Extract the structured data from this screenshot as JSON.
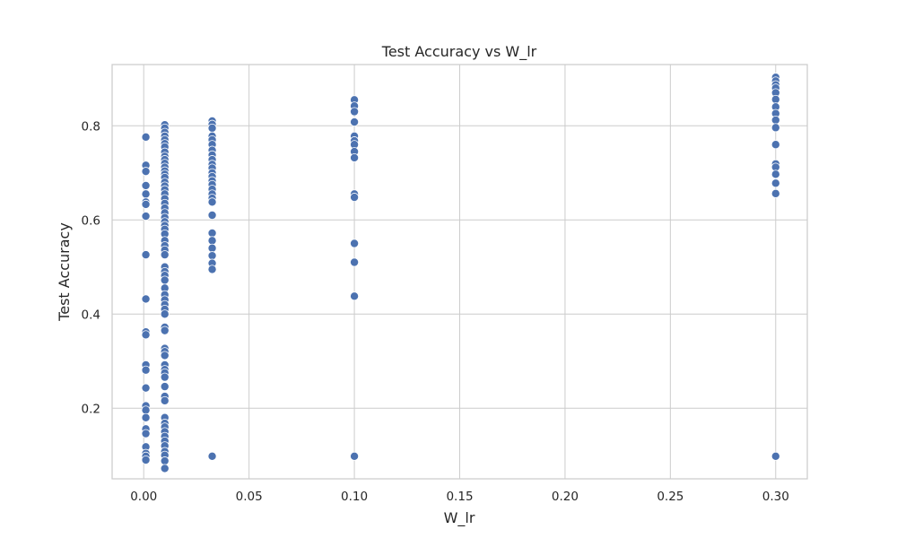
{
  "chart_data": {
    "type": "scatter",
    "title": "Test Accuracy vs W_lr",
    "xlabel": "W_lr",
    "ylabel": "Test Accuracy",
    "xlim": [
      -0.015,
      0.315
    ],
    "ylim": [
      0.05,
      0.93
    ],
    "xticks": [
      0.0,
      0.05,
      0.1,
      0.15,
      0.2,
      0.25,
      0.3
    ],
    "xtick_labels": [
      "0.00",
      "0.05",
      "0.10",
      "0.15",
      "0.20",
      "0.25",
      "0.30"
    ],
    "yticks": [
      0.2,
      0.4,
      0.6,
      0.8
    ],
    "ytick_labels": [
      "0.2",
      "0.4",
      "0.6",
      "0.8"
    ],
    "grid": true,
    "point_color": "#4c72b0",
    "series": [
      {
        "x": 0.001,
        "y": [
          0.776,
          0.716,
          0.703,
          0.673,
          0.655,
          0.638,
          0.633,
          0.608,
          0.526,
          0.432,
          0.362,
          0.356,
          0.292,
          0.281,
          0.243,
          0.205,
          0.196,
          0.18,
          0.156,
          0.146,
          0.118,
          0.104,
          0.098,
          0.09
        ]
      },
      {
        "x": 0.01,
        "y": [
          0.802,
          0.795,
          0.786,
          0.778,
          0.77,
          0.762,
          0.755,
          0.744,
          0.735,
          0.728,
          0.72,
          0.712,
          0.704,
          0.697,
          0.69,
          0.68,
          0.672,
          0.664,
          0.655,
          0.645,
          0.635,
          0.625,
          0.615,
          0.605,
          0.596,
          0.588,
          0.58,
          0.57,
          0.556,
          0.545,
          0.536,
          0.526,
          0.5,
          0.49,
          0.482,
          0.472,
          0.455,
          0.441,
          0.43,
          0.42,
          0.41,
          0.4,
          0.372,
          0.365,
          0.327,
          0.32,
          0.312,
          0.292,
          0.282,
          0.275,
          0.266,
          0.246,
          0.225,
          0.216,
          0.18,
          0.168,
          0.16,
          0.15,
          0.14,
          0.13,
          0.12,
          0.108,
          0.1,
          0.088,
          0.072
        ]
      },
      {
        "x": 0.0325,
        "y": [
          0.81,
          0.803,
          0.795,
          0.778,
          0.77,
          0.76,
          0.748,
          0.738,
          0.728,
          0.718,
          0.71,
          0.7,
          0.692,
          0.683,
          0.675,
          0.665,
          0.655,
          0.646,
          0.638,
          0.61,
          0.572,
          0.556,
          0.54,
          0.524,
          0.508,
          0.495,
          0.098
        ]
      },
      {
        "x": 0.1,
        "y": [
          0.855,
          0.842,
          0.83,
          0.808,
          0.778,
          0.768,
          0.76,
          0.745,
          0.732,
          0.655,
          0.648,
          0.55,
          0.51,
          0.438,
          0.098
        ]
      },
      {
        "x": 0.3,
        "y": [
          0.903,
          0.895,
          0.887,
          0.88,
          0.87,
          0.856,
          0.84,
          0.826,
          0.812,
          0.796,
          0.76,
          0.719,
          0.712,
          0.697,
          0.678,
          0.656,
          0.098
        ]
      }
    ]
  }
}
